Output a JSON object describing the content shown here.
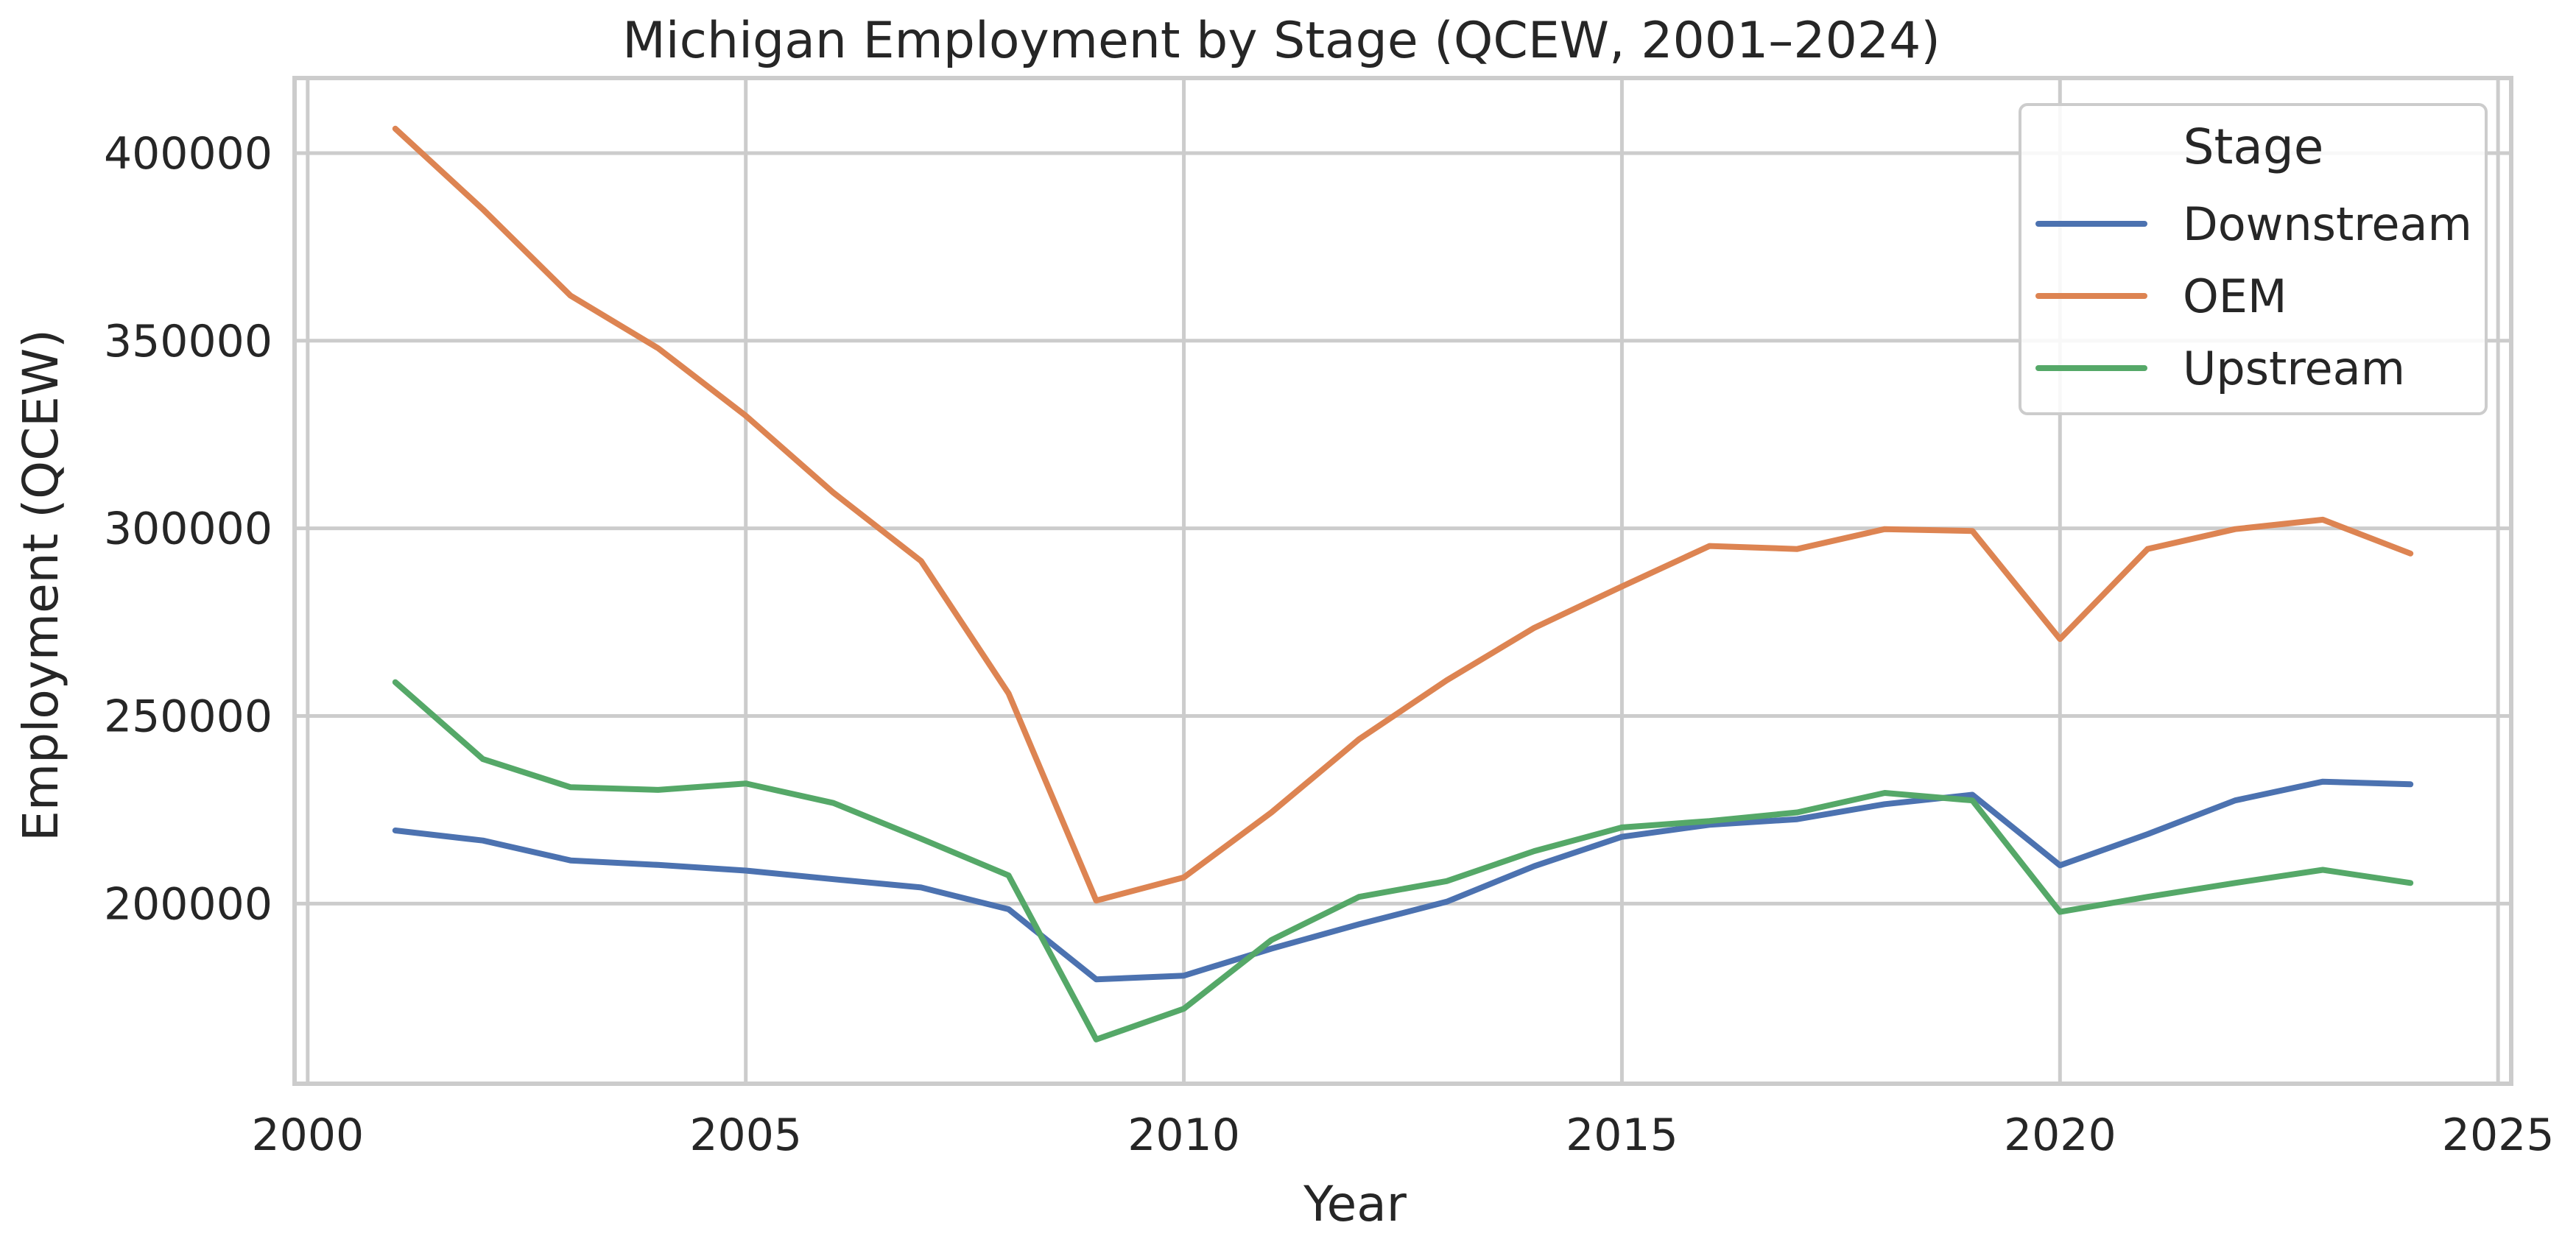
{
  "chart_data": {
    "type": "line",
    "title": "Michigan Employment by Stage (QCEW, 2001–2024)",
    "xlabel": "Year",
    "ylabel": "Employment (QCEW)",
    "xlim": [
      1999.85,
      2025.15
    ],
    "ylim": [
      152000,
      420000
    ],
    "x_ticks": [
      2000,
      2005,
      2010,
      2015,
      2020,
      2025
    ],
    "y_ticks": [
      200000,
      250000,
      300000,
      350000,
      400000
    ],
    "grid": true,
    "legend": {
      "title": "Stage",
      "placement": "upper right"
    },
    "x": [
      2001,
      2002,
      2003,
      2004,
      2005,
      2006,
      2007,
      2008,
      2009,
      2010,
      2011,
      2012,
      2013,
      2014,
      2015,
      2016,
      2017,
      2018,
      2019,
      2020,
      2021,
      2022,
      2023,
      2024
    ],
    "series": [
      {
        "name": "Downstream",
        "color": "#4c72b0",
        "values": [
          219500,
          216800,
          211500,
          210300,
          208800,
          206500,
          204300,
          198500,
          179800,
          180800,
          188000,
          194500,
          200500,
          210000,
          217800,
          221000,
          222500,
          226500,
          229000,
          210200,
          218500,
          227500,
          232500,
          231800
        ]
      },
      {
        "name": "OEM",
        "color": "#dd8452",
        "values": [
          406500,
          385000,
          362000,
          348000,
          330000,
          309500,
          291300,
          256000,
          200800,
          207000,
          224300,
          243800,
          259500,
          273500,
          284500,
          295300,
          294500,
          299800,
          299300,
          270500,
          294500,
          299800,
          302300,
          293300
        ]
      },
      {
        "name": "Upstream",
        "color": "#55a868",
        "values": [
          259000,
          238500,
          231000,
          230300,
          232000,
          226800,
          217300,
          207500,
          163800,
          172000,
          190300,
          201800,
          206000,
          214000,
          220300,
          222000,
          224300,
          229500,
          227500,
          197800,
          201800,
          205500,
          209000,
          205500
        ]
      }
    ]
  }
}
